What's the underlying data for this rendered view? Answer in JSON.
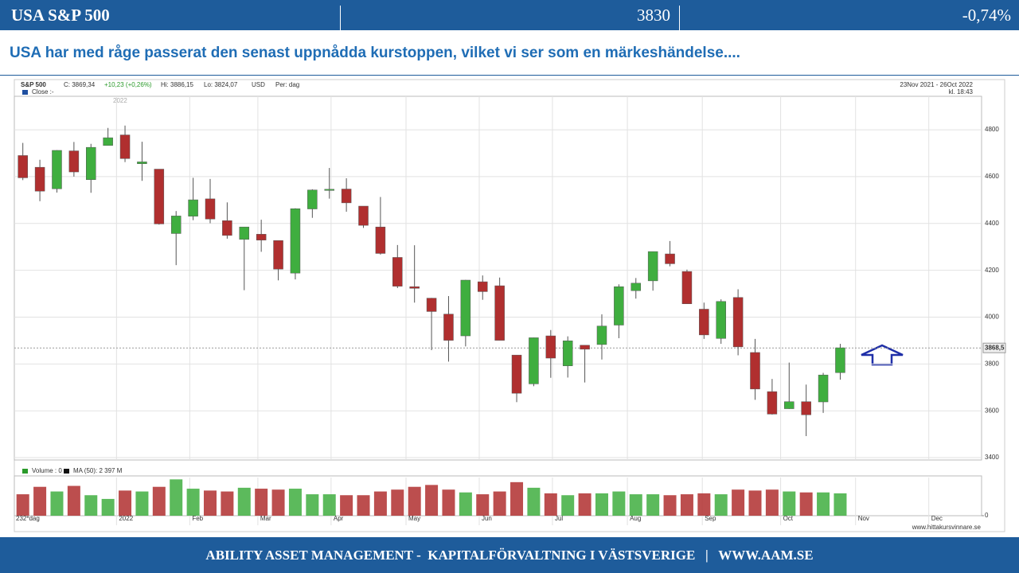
{
  "header": {
    "title": "USA S&P 500",
    "value": "3830",
    "change": "-0,74%"
  },
  "headline": "USA har med råge passerat den senast uppnådda kurstoppen, vilket vi ser som en märkeshändelse....",
  "footer": "ABILITY ASSET MANAGEMENT -  KAPITALFÖRVALTNING I VÄSTSVERIGE   |   WWW.AAM.SE",
  "chart_data": {
    "type": "candlestick",
    "info": {
      "symbol": "S&P 500",
      "close": "C: 3869,34",
      "change": "+10,23 (+0,26%)",
      "high": "Hi: 3886,15",
      "low": "Lo: 3824,07",
      "currency": "USD",
      "period": "Per: dag",
      "range": "23Nov 2021 - 26Oct 2022",
      "time": "kl. 18:43",
      "legend": "Close :-",
      "year": "2022",
      "days": "232*dag",
      "source": "www.hittakursvinnare.se"
    },
    "volume_legend": "Volume : 0",
    "ma_legend": "MA (50): 2 397 M",
    "open": [
      4690,
      4640,
      4548,
      4710,
      4587,
      4733,
      4778,
      4655,
      4632,
      4357,
      4431,
      4505,
      4412,
      4332,
      4354,
      4327,
      4188,
      4462,
      4541,
      4547,
      4474,
      4385,
      4255,
      4130,
      4081,
      4013,
      3920,
      4151,
      4134,
      3838,
      3715,
      3920,
      3792,
      3880,
      3883,
      3966,
      4113,
      4155,
      4270,
      4195,
      4034,
      3909,
      4084,
      3849,
      3682,
      3609,
      3639,
      3638,
      3763
    ],
    "high": [
      4744,
      4672,
      4713,
      4748,
      4740,
      4808,
      4818,
      4749,
      4632,
      4453,
      4595,
      4590,
      4490,
      4385,
      4416,
      4327,
      4465,
      4546,
      4637,
      4593,
      4471,
      4513,
      4308,
      4307,
      4082,
      4090,
      4159,
      4178,
      4169,
      3838,
      3913,
      3945,
      3918,
      3880,
      4012,
      4140,
      4167,
      4280,
      4325,
      4203,
      4062,
      4076,
      4119,
      3907,
      3736,
      3806,
      3712,
      3762,
      3886
    ],
    "low": [
      4585,
      4495,
      4532,
      4600,
      4531,
      4733,
      4662,
      4582,
      4395,
      4222,
      4414,
      4401,
      4335,
      4115,
      4279,
      4157,
      4161,
      4424,
      4506,
      4450,
      4381,
      4267,
      4124,
      4062,
      3859,
      3810,
      3875,
      4074,
      3901,
      3637,
      3705,
      3741,
      3742,
      3721,
      3819,
      3910,
      4079,
      4113,
      4217,
      4057,
      3907,
      3886,
      3837,
      3647,
      3584,
      3608,
      3492,
      3591,
      3733
    ],
    "close": [
      4595,
      4538,
      4712,
      4620,
      4725,
      4766,
      4677,
      4663,
      4398,
      4432,
      4501,
      4419,
      4349,
      4385,
      4329,
      4205,
      4463,
      4543,
      4546,
      4488,
      4392,
      4272,
      4132,
      4123,
      4024,
      3901,
      4158,
      4109,
      3901,
      3675,
      3912,
      3825,
      3899,
      3863,
      3962,
      4130,
      4145,
      4280,
      4228,
      4057,
      3924,
      4067,
      3873,
      3693,
      3586,
      3639,
      3583,
      3753,
      3869
    ],
    "volume": [
      2300,
      3100,
      2600,
      3200,
      2200,
      1800,
      2700,
      2600,
      3100,
      3900,
      2900,
      2700,
      2600,
      3000,
      2900,
      2800,
      2900,
      2300,
      2300,
      2200,
      2200,
      2600,
      2800,
      3100,
      3300,
      2800,
      2500,
      2300,
      2600,
      3600,
      3000,
      2400,
      2200,
      2400,
      2400,
      2600,
      2300,
      2300,
      2200,
      2300,
      2400,
      2300,
      2800,
      2700,
      2800,
      2600,
      2500,
      2500,
      2400
    ],
    "xlim": [
      0,
      56.8
    ],
    "xticks": [
      {
        "value": 6,
        "label": "2022"
      },
      {
        "value": 10.3,
        "label": "Feb"
      },
      {
        "value": 14.3,
        "label": "Mar"
      },
      {
        "value": 18.6,
        "label": "Apr"
      },
      {
        "value": 23,
        "label": "May"
      },
      {
        "value": 27.3,
        "label": "Jun"
      },
      {
        "value": 31.6,
        "label": "Jul"
      },
      {
        "value": 36,
        "label": "Aug"
      },
      {
        "value": 40.4,
        "label": "Sep"
      },
      {
        "value": 45,
        "label": "Oct"
      },
      {
        "value": 49.4,
        "label": "Nov"
      },
      {
        "value": 53.7,
        "label": "Dec"
      }
    ],
    "ylim": [
      3390,
      4943
    ],
    "yticks": [
      3400,
      3600,
      3800,
      4000,
      4200,
      4400,
      4600,
      4800
    ],
    "vlim": [
      0,
      4100
    ],
    "vticks": [
      0
    ],
    "last_line": {
      "value": 3868.5,
      "label": "3868,5"
    },
    "up_color": "#3fae3f",
    "down_color": "#b02f2f",
    "grid": true
  }
}
